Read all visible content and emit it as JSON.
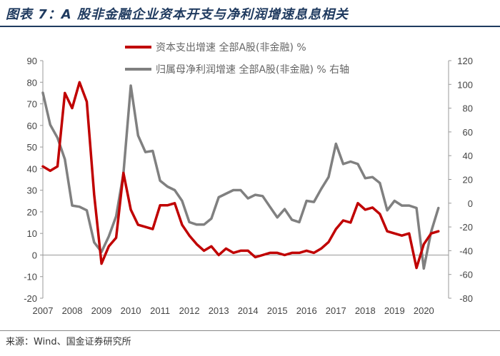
{
  "title": "图表 7：A 股非金融企业资本开支与净利润增速息息相关",
  "source": "来源：Wind、国金证券研究所",
  "chart_data": {
    "type": "line",
    "x_years": [
      "2007",
      "2008",
      "2009",
      "2010",
      "2011",
      "2012",
      "2013",
      "2014",
      "2015",
      "2016",
      "2017",
      "2018",
      "2019",
      "2020"
    ],
    "left_axis": {
      "ylim": [
        -20,
        90
      ],
      "ticks": [
        -20,
        -10,
        0,
        10,
        20,
        30,
        40,
        50,
        60,
        70,
        80,
        90
      ]
    },
    "right_axis": {
      "ylim": [
        -80,
        120
      ],
      "ticks": [
        -80,
        -60,
        -40,
        -20,
        0,
        20,
        40,
        60,
        80,
        100,
        120
      ]
    },
    "series": [
      {
        "name": "资本支出增速 全部A股(非金融) %",
        "axis": "left",
        "color": "#c00000",
        "x": [
          2007.0,
          2007.25,
          2007.5,
          2007.75,
          2008.0,
          2008.25,
          2008.5,
          2008.75,
          2009.0,
          2009.25,
          2009.5,
          2009.75,
          2010.0,
          2010.25,
          2010.5,
          2010.75,
          2011.0,
          2011.25,
          2011.5,
          2011.75,
          2012.0,
          2012.25,
          2012.5,
          2012.75,
          2013.0,
          2013.25,
          2013.5,
          2013.75,
          2014.0,
          2014.25,
          2014.5,
          2014.75,
          2015.0,
          2015.25,
          2015.5,
          2015.75,
          2016.0,
          2016.25,
          2016.5,
          2016.75,
          2017.0,
          2017.25,
          2017.5,
          2017.75,
          2018.0,
          2018.25,
          2018.5,
          2018.75,
          2019.0,
          2019.25,
          2019.5,
          2019.75,
          2020.0,
          2020.25,
          2020.5
        ],
        "values": [
          41,
          39,
          41,
          75,
          68,
          80,
          71,
          28,
          -4,
          4,
          8,
          38,
          21,
          14,
          13,
          12,
          23,
          23,
          24,
          14,
          9,
          5,
          2,
          4,
          0,
          3,
          1,
          2,
          2,
          -1,
          0,
          1,
          1,
          0,
          1,
          1,
          2,
          1,
          3,
          6,
          12,
          16,
          15,
          24,
          21,
          22,
          19,
          11,
          10,
          9,
          10,
          -6,
          5,
          10,
          11
        ]
      },
      {
        "name": "归属母净利润增速 全部A股(非金融) % 右轴",
        "axis": "right",
        "color": "#808080",
        "x": [
          2007.0,
          2007.25,
          2007.5,
          2007.75,
          2008.0,
          2008.25,
          2008.5,
          2008.75,
          2009.0,
          2009.25,
          2009.5,
          2009.75,
          2010.0,
          2010.25,
          2010.5,
          2010.75,
          2011.0,
          2011.25,
          2011.5,
          2011.75,
          2012.0,
          2012.25,
          2012.5,
          2012.75,
          2013.0,
          2013.25,
          2013.5,
          2013.75,
          2014.0,
          2014.25,
          2014.5,
          2014.75,
          2015.0,
          2015.25,
          2015.5,
          2015.75,
          2016.0,
          2016.25,
          2016.5,
          2016.75,
          2017.0,
          2017.25,
          2017.5,
          2017.75,
          2018.0,
          2018.25,
          2018.5,
          2018.75,
          2019.0,
          2019.25,
          2019.5,
          2019.75,
          2020.0,
          2020.25,
          2020.5
        ],
        "values": [
          93,
          66,
          55,
          37,
          -2,
          -3,
          -6,
          -33,
          -41,
          -28,
          -11,
          25,
          99,
          57,
          43,
          44,
          19,
          14,
          11,
          2,
          -16,
          -18,
          -18,
          -13,
          5,
          8,
          11,
          11,
          4,
          7,
          6,
          -3,
          -12,
          -5,
          -14,
          -16,
          2,
          1,
          12,
          22,
          50,
          33,
          35,
          33,
          21,
          22,
          17,
          -6,
          2,
          -2,
          -2,
          -4,
          -55,
          -24,
          -4
        ]
      }
    ]
  }
}
